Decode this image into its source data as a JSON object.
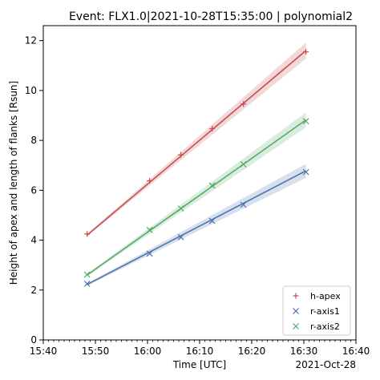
{
  "chart_data": {
    "type": "line",
    "title": "Event: FLX1.0|2021-10-28T15:35:00 | polynomial2",
    "xlabel": "Time [UTC]",
    "ylabel": "Height of apex and length of flanks [Rsun]",
    "date_label": "2021-Oct-28",
    "xlim": [
      "15:40",
      "16:40"
    ],
    "ylim": [
      0,
      12.6
    ],
    "x_ticks": [
      "15:40",
      "15:50",
      "16:00",
      "16:10",
      "16:20",
      "16:30",
      "16:40"
    ],
    "y_ticks": [
      0,
      2,
      4,
      6,
      8,
      10,
      12
    ],
    "grid": false,
    "legend_position": "lower-right",
    "series": [
      {
        "name": "h-apex",
        "color": "#c44e52",
        "marker": "+",
        "points": [
          {
            "x": "15:48:24",
            "y": 4.25
          },
          {
            "x": "16:00:24",
            "y": 6.38
          },
          {
            "x": "16:06:24",
            "y": 7.42
          },
          {
            "x": "16:12:24",
            "y": 8.47
          },
          {
            "x": "16:18:24",
            "y": 9.46
          },
          {
            "x": "16:30:24",
            "y": 11.55
          }
        ],
        "fit": {
          "start": [
            "15:48:24",
            4.2
          ],
          "end": [
            "16:30:24",
            11.6
          ],
          "band_start": 0.05,
          "band_end": 0.32
        }
      },
      {
        "name": "r-axis1",
        "color": "#4c72b0",
        "marker": "x",
        "points": [
          {
            "x": "15:48:24",
            "y": 2.25
          },
          {
            "x": "16:00:24",
            "y": 3.46
          },
          {
            "x": "16:06:24",
            "y": 4.12
          },
          {
            "x": "16:12:24",
            "y": 4.77
          },
          {
            "x": "16:18:24",
            "y": 5.42
          },
          {
            "x": "16:30:24",
            "y": 6.73
          }
        ],
        "fit": {
          "start": [
            "15:48:24",
            2.22
          ],
          "end": [
            "16:30:24",
            6.78
          ],
          "band_start": 0.05,
          "band_end": 0.28
        }
      },
      {
        "name": "r-axis2",
        "color": "#55a868",
        "marker": "x",
        "points": [
          {
            "x": "15:48:24",
            "y": 2.62
          },
          {
            "x": "16:00:24",
            "y": 4.41
          },
          {
            "x": "16:06:24",
            "y": 5.27
          },
          {
            "x": "16:12:24",
            "y": 6.19
          },
          {
            "x": "16:18:24",
            "y": 7.04
          },
          {
            "x": "16:30:24",
            "y": 8.77
          }
        ],
        "fit": {
          "start": [
            "15:48:24",
            2.6
          ],
          "end": [
            "16:30:24",
            8.82
          ],
          "band_start": 0.05,
          "band_end": 0.3
        }
      }
    ]
  }
}
